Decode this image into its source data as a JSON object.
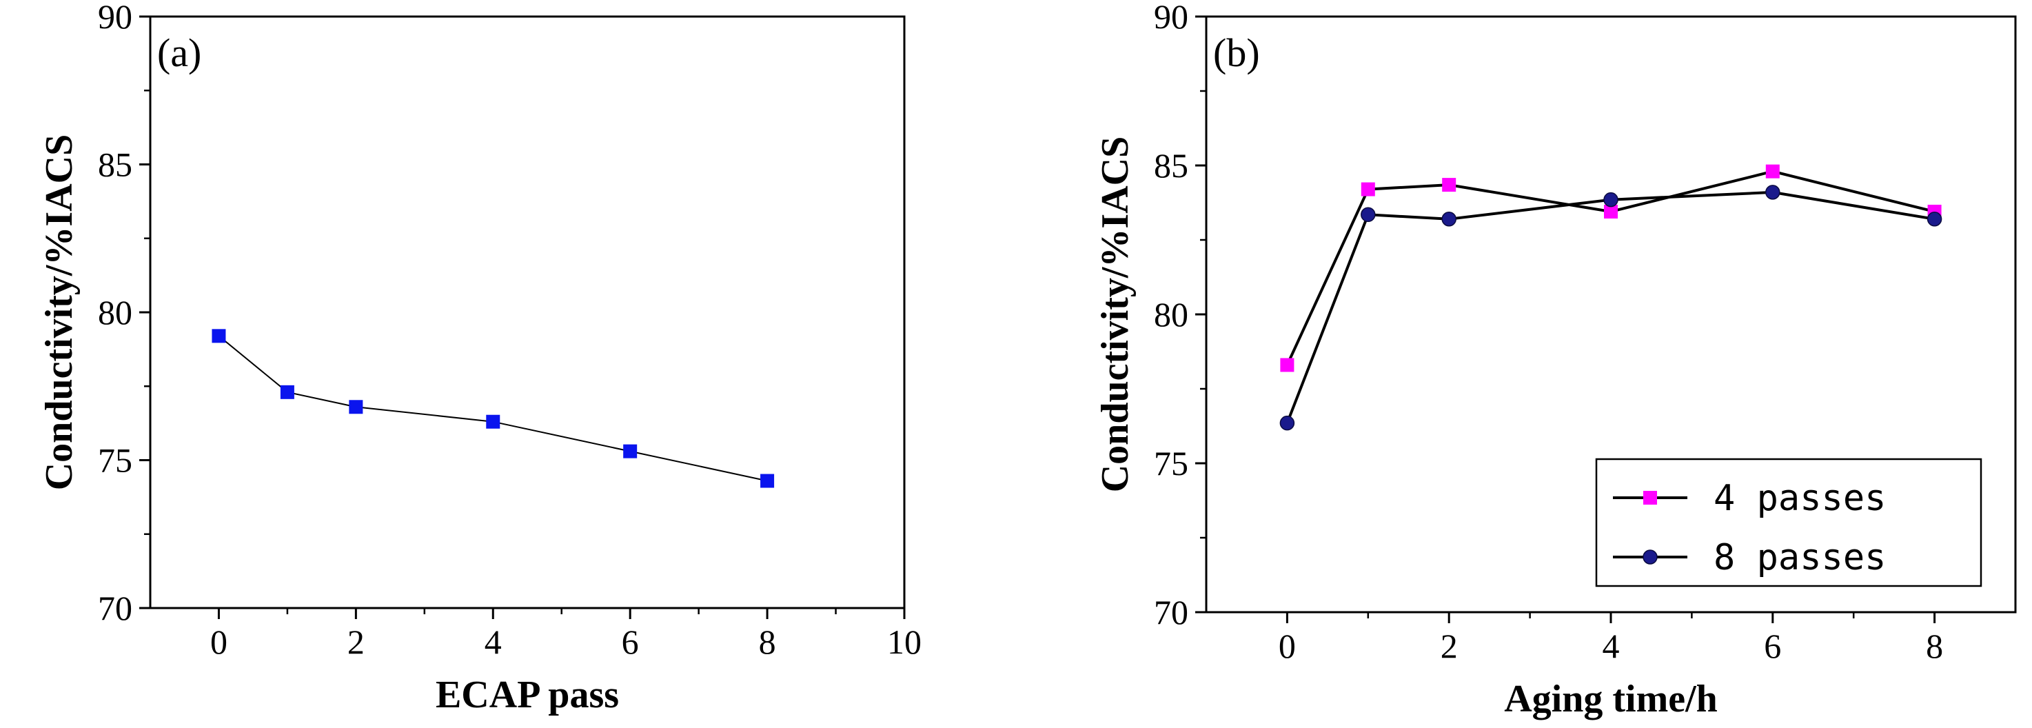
{
  "chart_data": [
    {
      "type": "line",
      "panel_label": "(a)",
      "xlabel": "ECAP  pass",
      "ylabel": "Conductivity/%IACS",
      "xlim": [
        -1,
        10
      ],
      "ylim": [
        70,
        90
      ],
      "xticks": [
        0,
        2,
        4,
        6,
        8,
        10
      ],
      "yticks": [
        70,
        75,
        80,
        85,
        90
      ],
      "grid": false,
      "series": [
        {
          "x": [
            0,
            1,
            2,
            4,
            6,
            8
          ],
          "values": [
            79.2,
            77.3,
            76.8,
            76.3,
            75.3,
            74.3
          ],
          "color": "#0a14ee",
          "marker": "square"
        }
      ]
    },
    {
      "type": "line",
      "panel_label": "(b)",
      "xlabel": "Aging time/h",
      "ylabel": "Conductivity/%IACS",
      "xlim": [
        -1,
        9
      ],
      "ylim": [
        70,
        90
      ],
      "xticks": [
        0,
        2,
        4,
        6,
        8
      ],
      "yticks": [
        70,
        75,
        80,
        85,
        90
      ],
      "grid": false,
      "legend_position": "bottom-right",
      "series": [
        {
          "name": "4 passes",
          "x": [
            0,
            1,
            2,
            4,
            6,
            8
          ],
          "values": [
            78.3,
            84.2,
            84.35,
            83.45,
            84.8,
            83.45
          ],
          "color": "#ff00ff",
          "marker": "square"
        },
        {
          "name": "8 passes",
          "x": [
            0,
            1,
            2,
            4,
            6,
            8
          ],
          "values": [
            76.35,
            83.35,
            83.2,
            83.85,
            84.1,
            83.2
          ],
          "color": "#1a1a8c",
          "marker": "circle"
        }
      ]
    }
  ]
}
